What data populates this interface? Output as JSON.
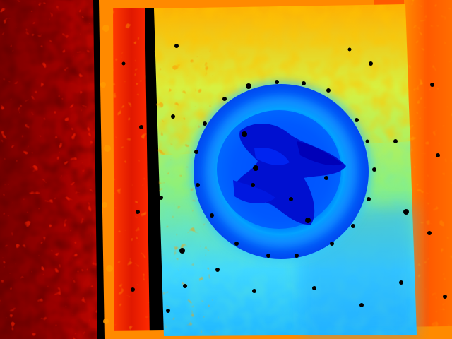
{
  "image": {
    "kind": "depth-map",
    "colormap": "jet",
    "colors": {
      "far": "#7a0000",
      "mid_far": "#d81a00",
      "orange": "#ff8a00",
      "yellow": "#ffd400",
      "green": "#9cf26a",
      "cyan": "#40d8ff",
      "blue": "#0070ff",
      "near": "#0008cc",
      "invalid": "#000000"
    },
    "regions": [
      {
        "name": "background-wall-left",
        "depth": "far"
      },
      {
        "name": "door-frame-post",
        "depth": "mid-far"
      },
      {
        "name": "door-frame-right",
        "depth": "mid-far"
      },
      {
        "name": "panel-board",
        "depth": "mid"
      },
      {
        "name": "circular-sign",
        "depth": "near"
      },
      {
        "name": "sign-center-object",
        "depth": "nearest"
      }
    ]
  }
}
